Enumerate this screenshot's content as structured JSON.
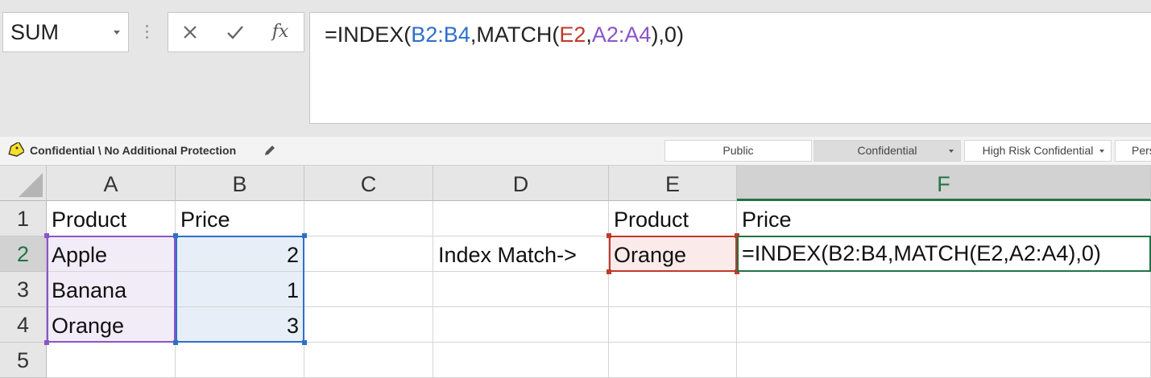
{
  "name_box": {
    "value": "SUM"
  },
  "formula_bar": {
    "tokens": [
      {
        "text": "=INDEX(",
        "color": "default"
      },
      {
        "text": "B2:B4",
        "color": "blue"
      },
      {
        "text": ",MATCH(",
        "color": "default"
      },
      {
        "text": "E2",
        "color": "red"
      },
      {
        "text": ",",
        "color": "default"
      },
      {
        "text": "A2:A4",
        "color": "purple"
      },
      {
        "text": "),0)",
        "color": "default"
      }
    ]
  },
  "sensitivity": {
    "label": "Confidential \\ No Additional Protection",
    "buttons": [
      {
        "label": "Public"
      },
      {
        "label": "Confidential"
      },
      {
        "label": "High Risk Confidential"
      },
      {
        "label": "Pers"
      }
    ]
  },
  "colors": {
    "accent_green": "#217346",
    "ref_blue": "#2f6fc9",
    "ref_red": "#c0392b",
    "ref_purple": "#8a55c7"
  },
  "grid": {
    "columns": [
      "A",
      "B",
      "C",
      "D",
      "E",
      "F"
    ],
    "selected_column": "F",
    "rows": [
      "1",
      "2",
      "3",
      "4",
      "5"
    ],
    "selected_row": "2",
    "cells": {
      "A1": "Product",
      "B1": "Price",
      "E1": "Product",
      "F1": "Price",
      "A2": "Apple",
      "B2": "2",
      "D2": "Index Match->",
      "E2": "Orange",
      "F2": "=INDEX(B2:B4,MATCH(E2,A2:A4),0)",
      "A3": "Banana",
      "B3": "1",
      "A4": "Orange",
      "B4": "3"
    }
  }
}
